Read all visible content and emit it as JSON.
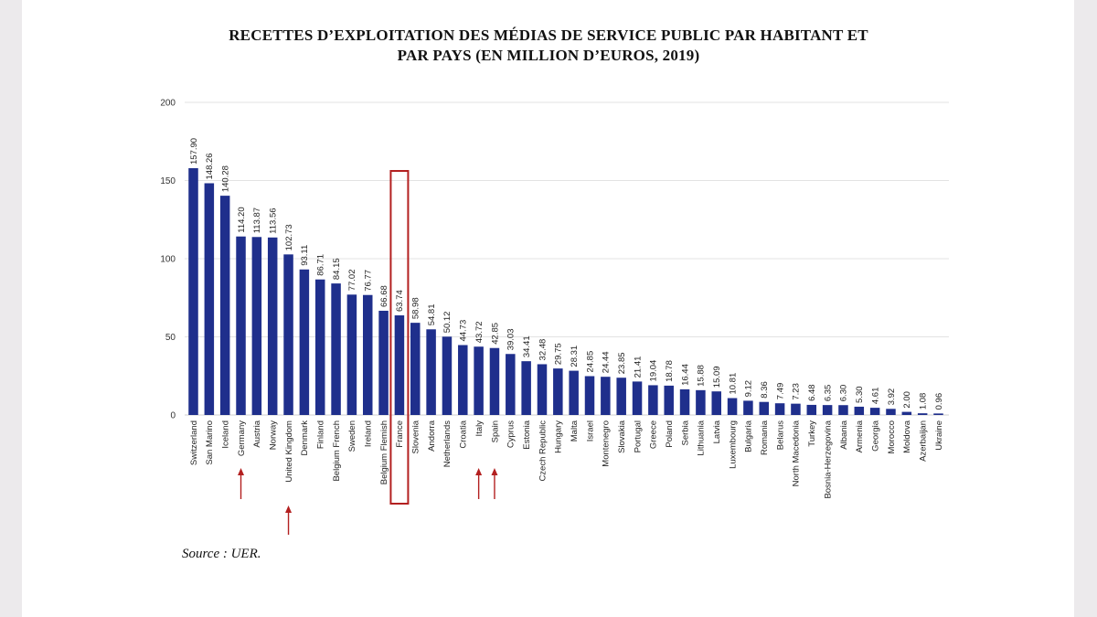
{
  "chart_data": {
    "type": "bar",
    "title_line1": "RECETTES D’EXPLOITATION DES MÉDIAS DE SERVICE PUBLIC PAR HABITANT ET",
    "title_line2": "PAR PAYS (EN MILLION D’EUROS, 2019)",
    "xlabel": "",
    "ylabel": "",
    "ylim": [
      0,
      200
    ],
    "yticks": [
      0,
      50,
      100,
      150,
      200
    ],
    "grid": true,
    "bar_color": "#1f2f8c",
    "highlight_color": "#b32020",
    "categories": [
      "Switzerland",
      "San Marino",
      "Iceland",
      "Germany",
      "Austria",
      "Norway",
      "United Kingdom",
      "Denmark",
      "Finland",
      "Belgium French",
      "Sweden",
      "Ireland",
      "Belgium Flemish",
      "France",
      "Slovenia",
      "Andorra",
      "Netherlands",
      "Croatia",
      "Italy",
      "Spain",
      "Cyprus",
      "Estonia",
      "Czech Republic",
      "Hungary",
      "Malta",
      "Israel",
      "Montenegro",
      "Slovakia",
      "Portugal",
      "Greece",
      "Poland",
      "Serbia",
      "Lithuania",
      "Latvia",
      "Luxembourg",
      "Bulgaria",
      "Romania",
      "Belarus",
      "North Macedonia",
      "Turkey",
      "Bosnia-Herzegovina",
      "Albania",
      "Armenia",
      "Georgia",
      "Morocco",
      "Moldova",
      "Azerbaijan",
      "Ukraine"
    ],
    "values": [
      157.9,
      148.26,
      140.28,
      114.2,
      113.87,
      113.56,
      102.73,
      93.11,
      86.71,
      84.15,
      77.02,
      76.77,
      66.68,
      63.74,
      58.98,
      54.81,
      50.12,
      44.73,
      43.72,
      42.85,
      39.03,
      34.41,
      32.48,
      29.75,
      28.31,
      24.85,
      24.44,
      23.85,
      21.41,
      19.04,
      18.78,
      16.44,
      15.88,
      15.09,
      10.81,
      9.12,
      8.36,
      7.49,
      7.23,
      6.48,
      6.35,
      6.3,
      5.3,
      4.61,
      3.92,
      2.0,
      1.08,
      0.96
    ],
    "value_labels": [
      "157.90",
      "148.26",
      "140.28",
      "114.20",
      "113.87",
      "113.56",
      "102.73",
      "93.11",
      "86.71",
      "84.15",
      "77.02",
      "76.77",
      "66.68",
      "63.74",
      "58.98",
      "54.81",
      "50.12",
      "44.73",
      "43.72",
      "42.85",
      "39.03",
      "34.41",
      "32.48",
      "29.75",
      "28.31",
      "24.85",
      "24.44",
      "23.85",
      "21.41",
      "19.04",
      "18.78",
      "16.44",
      "15.88",
      "15.09",
      "10.81",
      "9.12",
      "8.36",
      "7.49",
      "7.23",
      "6.48",
      "6.35",
      "6.30",
      "5.30",
      "4.61",
      "3.92",
      "2.00",
      "1.08",
      "0.96"
    ],
    "annotations": {
      "highlight_box": "France",
      "arrows": [
        "Germany",
        "United Kingdom",
        "Italy",
        "Spain"
      ]
    }
  },
  "source": "Source : UER."
}
